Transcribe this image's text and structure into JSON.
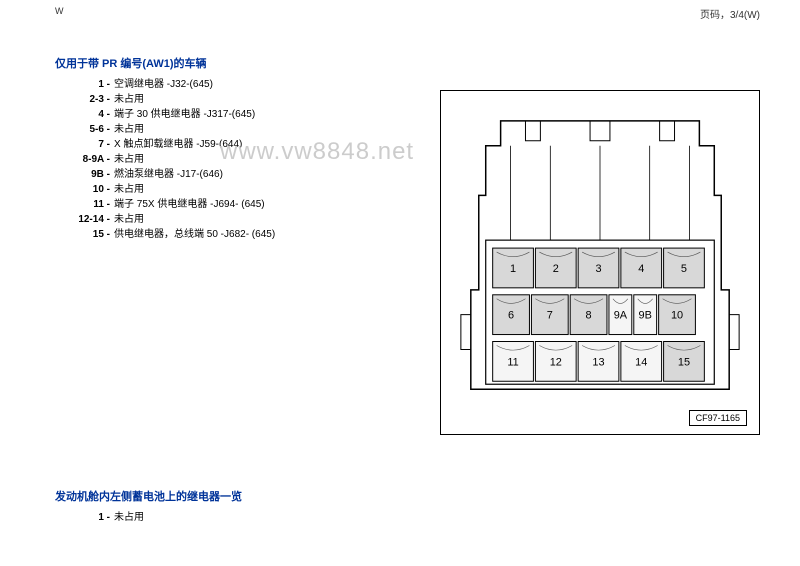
{
  "header": {
    "left": "W",
    "right": "页码，3/4(W)"
  },
  "section1": {
    "title": "仅用于带 PR 编号(AW1)的车辆",
    "items": [
      {
        "num": "1 -",
        "text": "空调继电器 -J32-(645)"
      },
      {
        "num": "2-3 -",
        "text": "未占用"
      },
      {
        "num": "4 -",
        "text": "端子 30 供电继电器 -J317-(645)"
      },
      {
        "num": "5-6 -",
        "text": "未占用"
      },
      {
        "num": "7 -",
        "text": "X 触点卸载继电器 -J59-(644)"
      },
      {
        "num": "8-9A -",
        "text": "未占用"
      },
      {
        "num": "9B -",
        "text": "燃油泵继电器 -J17-(646)"
      },
      {
        "num": "10 -",
        "text": "未占用"
      },
      {
        "num": "11 -",
        "text": "端子 75X 供电继电器 -J694- (645)"
      },
      {
        "num": "12-14 -",
        "text": "未占用"
      },
      {
        "num": "15 -",
        "text": "供电继电器，总线端 50 -J682- (645)"
      }
    ]
  },
  "watermark": "www.vw8848.net",
  "diagram": {
    "code": "CF97-1165",
    "relay_labels": [
      "1",
      "2",
      "3",
      "4",
      "5",
      "6",
      "7",
      "8",
      "9A",
      "9B",
      "10",
      "11",
      "12",
      "13",
      "14",
      "15"
    ]
  },
  "section2": {
    "title": "发动机舱内左侧蓄电池上的继电器一览",
    "items": [
      {
        "num": "1 -",
        "text": "未占用"
      }
    ]
  }
}
